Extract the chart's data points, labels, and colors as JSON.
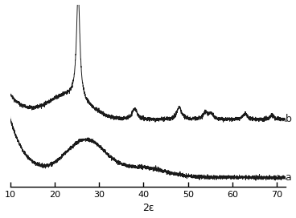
{
  "title": "",
  "xlabel": "2ε",
  "xlim": [
    10,
    72
  ],
  "ylim": [
    0,
    11
  ],
  "xticks": [
    10,
    20,
    30,
    40,
    50,
    60,
    70
  ],
  "line_color": "#1a1a1a",
  "label_a": "a",
  "label_b": "b",
  "background_color": "#ffffff",
  "noise_scale_a": 0.055,
  "noise_scale_b": 0.055,
  "figsize": [
    3.68,
    2.72
  ],
  "dpi": 100
}
